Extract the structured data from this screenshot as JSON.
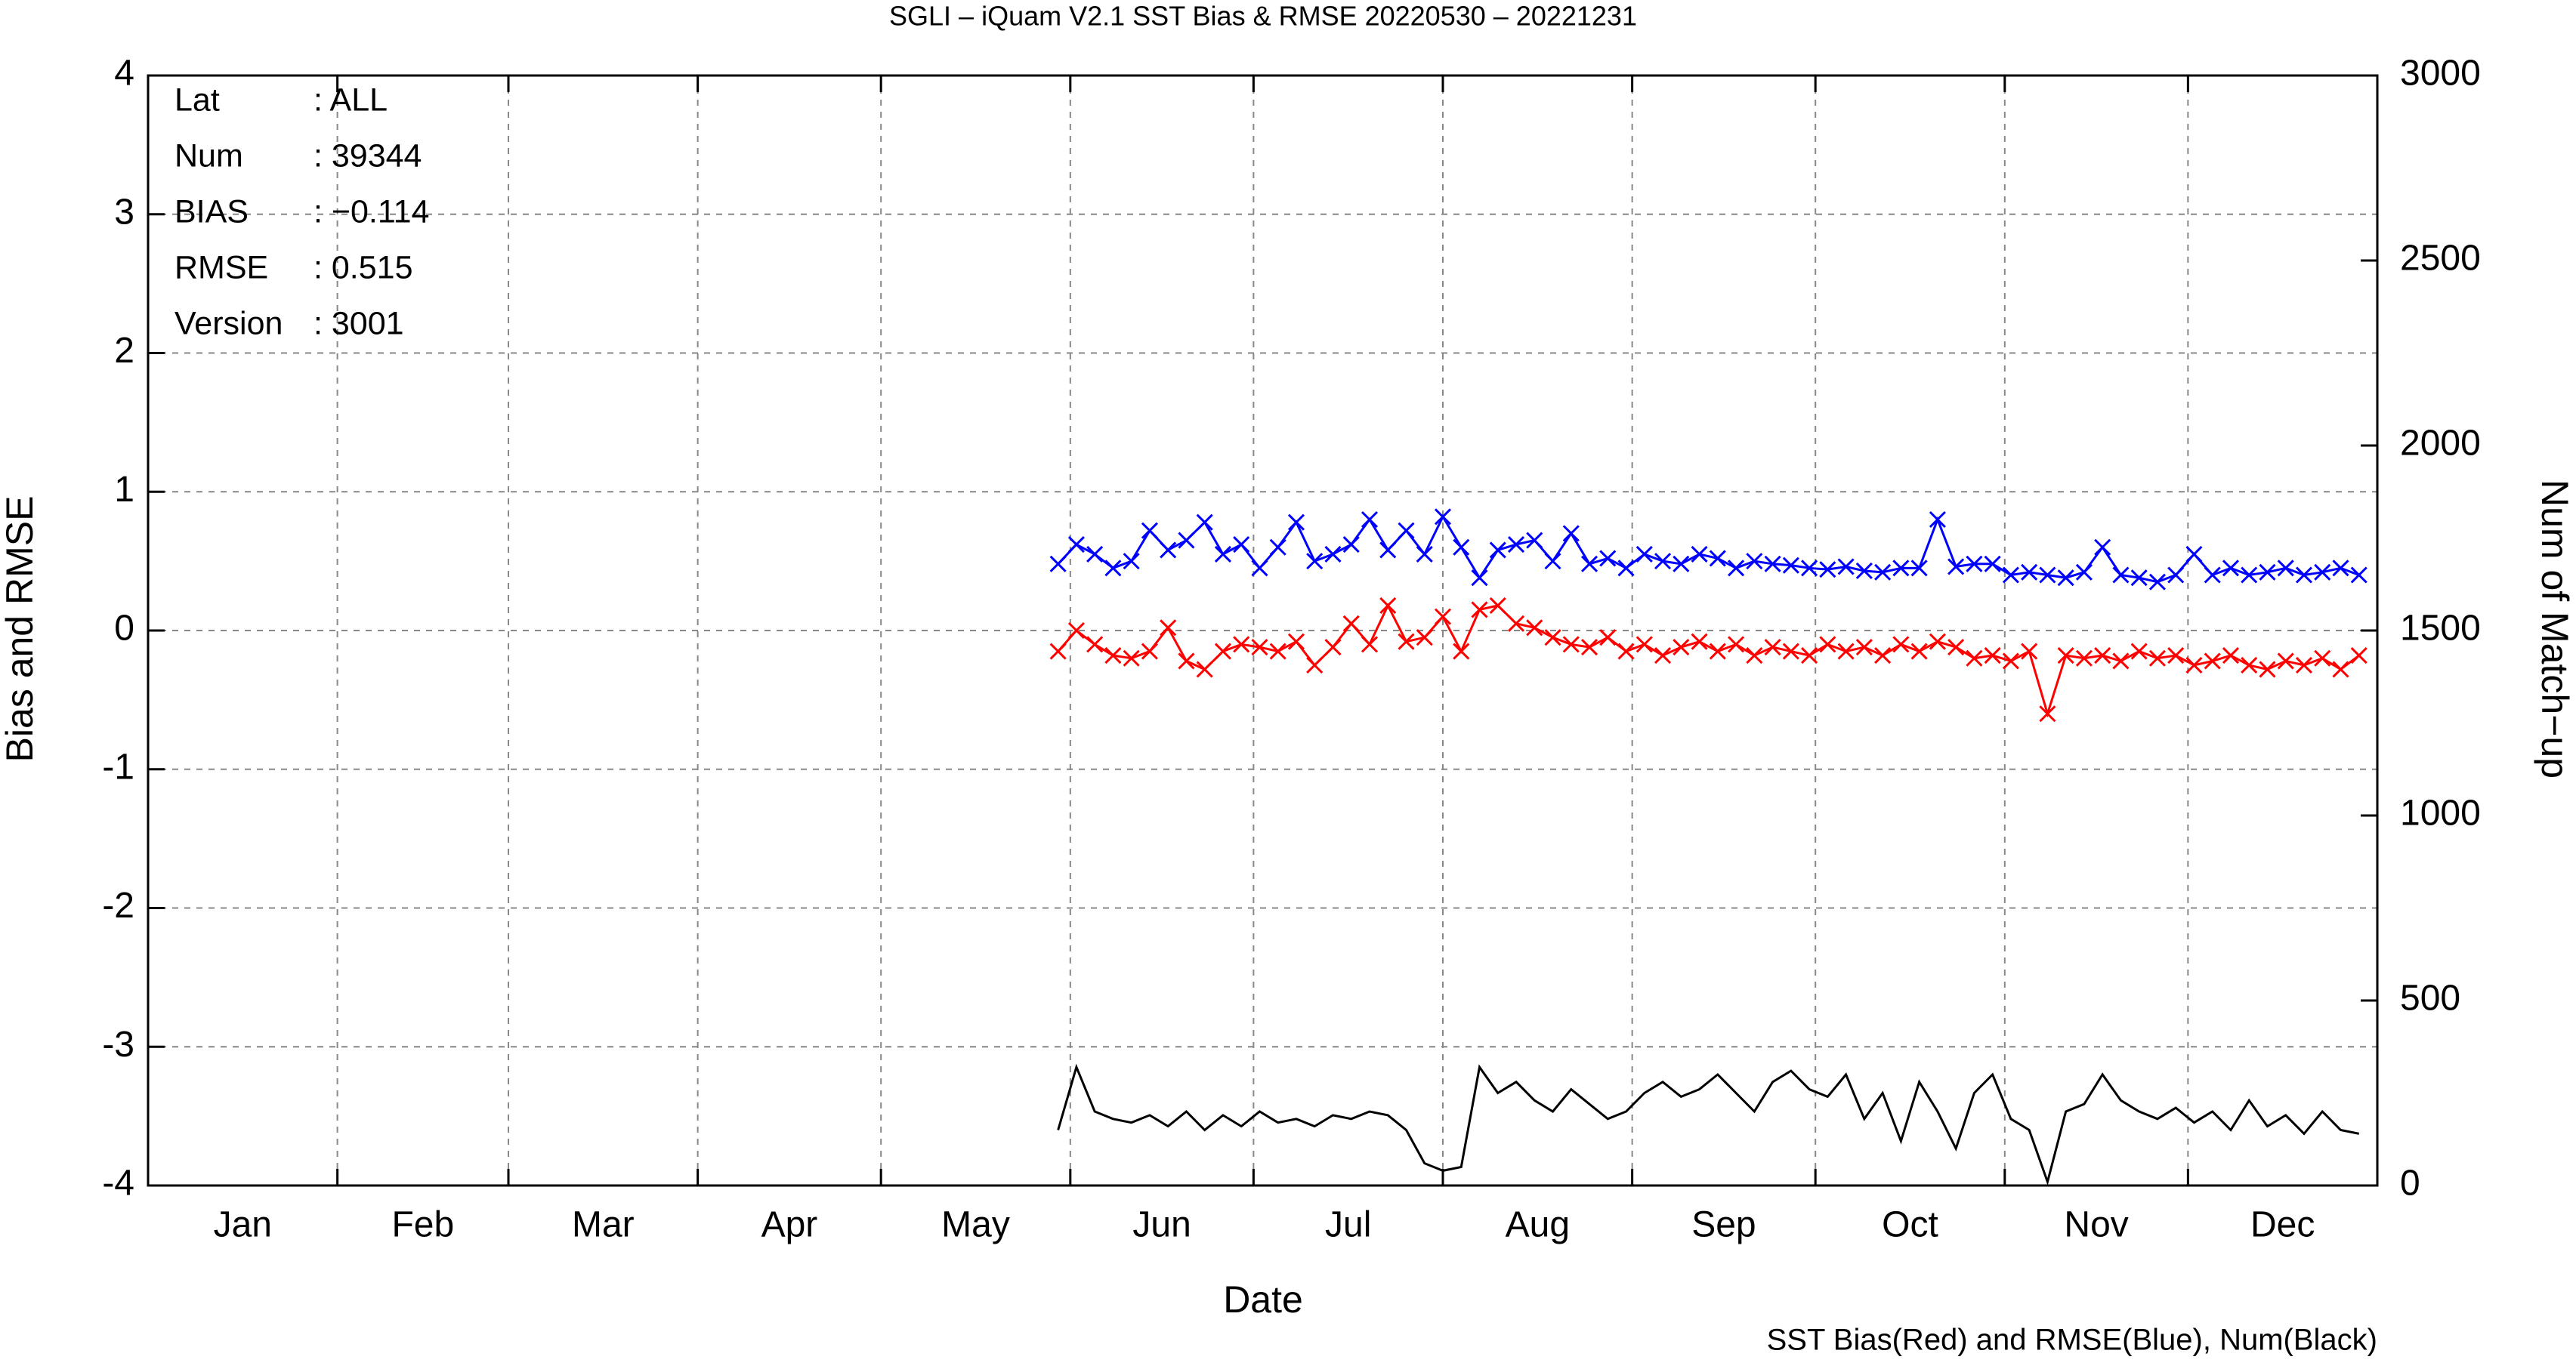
{
  "chart_data": {
    "type": "line",
    "title": "SGLI – iQuam V2.1 SST Bias & RMSE 20220530 – 20221231",
    "xlabel": "Date",
    "ylabel": "Bias and RMSE",
    "y2label": "Num of Match−up",
    "footnote": "SST Bias(Red) and RMSE(Blue), Num(Black)",
    "annotations": [
      [
        "Lat",
        ": ALL"
      ],
      [
        "Num",
        ": 39344"
      ],
      [
        "BIAS",
        ": −0.114"
      ],
      [
        "RMSE",
        ": 0.515"
      ],
      [
        "Version",
        ": 3001"
      ]
    ],
    "categories": [
      "Jan",
      "Feb",
      "Mar",
      "Apr",
      "May",
      "Jun",
      "Jul",
      "Aug",
      "Sep",
      "Oct",
      "Nov",
      "Dec"
    ],
    "xlim": [
      0,
      365
    ],
    "xticks": [
      31,
      59,
      90,
      120,
      151,
      181,
      212,
      243,
      273,
      304,
      334
    ],
    "ylim": [
      -4,
      4
    ],
    "yticks": [
      -4,
      -3,
      -2,
      -1,
      0,
      1,
      2,
      3,
      4
    ],
    "y2lim": [
      0,
      3000
    ],
    "y2ticks": [
      0,
      500,
      1000,
      1500,
      2000,
      2500,
      3000
    ],
    "grid": true,
    "x": [
      149,
      152,
      155,
      158,
      161,
      164,
      167,
      170,
      173,
      176,
      179,
      182,
      185,
      188,
      191,
      194,
      197,
      200,
      203,
      206,
      209,
      212,
      215,
      218,
      221,
      224,
      227,
      230,
      233,
      236,
      239,
      242,
      245,
      248,
      251,
      254,
      257,
      260,
      263,
      266,
      269,
      272,
      275,
      278,
      281,
      284,
      287,
      290,
      293,
      296,
      299,
      302,
      305,
      308,
      311,
      314,
      317,
      320,
      323,
      326,
      329,
      332,
      335,
      338,
      341,
      344,
      347,
      350,
      353,
      356,
      359,
      362
    ],
    "series": [
      {
        "color": "#0000ff",
        "marker": "x",
        "values": [
          0.48,
          0.62,
          0.55,
          0.45,
          0.5,
          0.72,
          0.58,
          0.65,
          0.78,
          0.55,
          0.62,
          0.45,
          0.6,
          0.78,
          0.5,
          0.55,
          0.62,
          0.8,
          0.58,
          0.72,
          0.55,
          0.82,
          0.6,
          0.38,
          0.58,
          0.62,
          0.65,
          0.5,
          0.7,
          0.48,
          0.52,
          0.45,
          0.55,
          0.5,
          0.48,
          0.55,
          0.52,
          0.45,
          0.5,
          0.48,
          0.47,
          0.45,
          0.44,
          0.46,
          0.43,
          0.42,
          0.45,
          0.45,
          0.8,
          0.46,
          0.48,
          0.48,
          0.4,
          0.42,
          0.4,
          0.38,
          0.42,
          0.6,
          0.4,
          0.38,
          0.35,
          0.4,
          0.55,
          0.4,
          0.45,
          0.4,
          0.42,
          0.45,
          0.4,
          0.42,
          0.45,
          0.4
        ]
      },
      {
        "color": "#ff0000",
        "marker": "x",
        "values": [
          -0.15,
          0.0,
          -0.1,
          -0.18,
          -0.2,
          -0.15,
          0.02,
          -0.22,
          -0.28,
          -0.15,
          -0.1,
          -0.12,
          -0.15,
          -0.08,
          -0.25,
          -0.12,
          0.05,
          -0.1,
          0.18,
          -0.08,
          -0.05,
          0.1,
          -0.15,
          0.15,
          0.18,
          0.05,
          0.02,
          -0.05,
          -0.1,
          -0.12,
          -0.05,
          -0.15,
          -0.1,
          -0.18,
          -0.12,
          -0.08,
          -0.15,
          -0.1,
          -0.18,
          -0.12,
          -0.15,
          -0.18,
          -0.1,
          -0.15,
          -0.12,
          -0.18,
          -0.1,
          -0.15,
          -0.08,
          -0.12,
          -0.2,
          -0.18,
          -0.22,
          -0.15,
          -0.6,
          -0.18,
          -0.2,
          -0.18,
          -0.22,
          -0.15,
          -0.2,
          -0.18,
          -0.25,
          -0.22,
          -0.18,
          -0.25,
          -0.28,
          -0.22,
          -0.25,
          -0.2,
          -0.28,
          -0.18
        ]
      },
      {
        "color": "#000000",
        "axis": "y2",
        "values": [
          150,
          320,
          200,
          180,
          170,
          190,
          160,
          200,
          150,
          190,
          160,
          200,
          170,
          180,
          160,
          190,
          180,
          200,
          190,
          150,
          60,
          40,
          50,
          320,
          250,
          280,
          230,
          200,
          260,
          220,
          180,
          200,
          250,
          280,
          240,
          260,
          300,
          250,
          200,
          280,
          310,
          260,
          240,
          300,
          180,
          250,
          120,
          280,
          200,
          100,
          250,
          300,
          180,
          150,
          10,
          200,
          220,
          300,
          230,
          200,
          180,
          210,
          170,
          200,
          150,
          230,
          160,
          190,
          140,
          200,
          150,
          140
        ]
      }
    ]
  }
}
